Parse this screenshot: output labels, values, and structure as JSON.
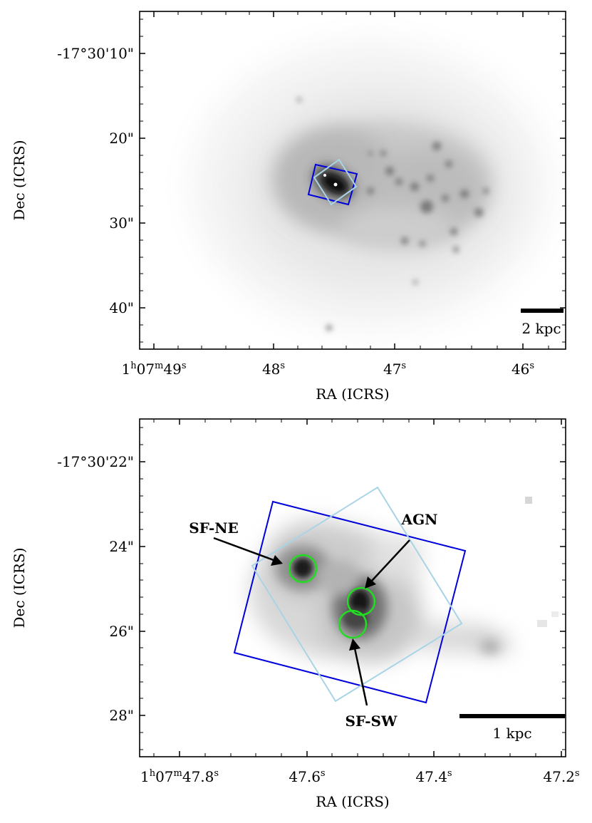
{
  "top_panel": {
    "xlabel": "RA (ICRS)",
    "ylabel": "Dec (ICRS)",
    "x_ticks": [
      {
        "main": "1",
        "h": "h",
        "m_val": "07",
        "m": "m",
        "s_val": "49",
        "s": "s"
      },
      {
        "main": "48",
        "s": "s"
      },
      {
        "main": "47",
        "s": "s"
      },
      {
        "main": "46",
        "s": "s"
      }
    ],
    "y_ticks": [
      "-17°30'10\"",
      "20\"",
      "30\"",
      "40\""
    ],
    "scale_bar_label": "2 kpc",
    "colors": {
      "blue_box": "#0000dd",
      "lightblue_box": "#a8d4e6"
    }
  },
  "bottom_panel": {
    "xlabel": "RA (ICRS)",
    "ylabel": "Dec (ICRS)",
    "x_ticks": [
      {
        "main": "1",
        "h": "h",
        "m_val": "07",
        "m": "m",
        "s_val": "47.8",
        "s": "s"
      },
      {
        "main": "47.6",
        "s": "s"
      },
      {
        "main": "47.4",
        "s": "s"
      },
      {
        "main": "47.2",
        "s": "s"
      }
    ],
    "y_ticks": [
      "-17°30'22\"",
      "24\"",
      "26\"",
      "28\""
    ],
    "scale_bar_label": "1 kpc",
    "annotations": {
      "sf_ne": "SF-NE",
      "agn": "AGN",
      "sf_sw": "SF-SW"
    },
    "colors": {
      "blue_box": "#0000dd",
      "lightblue_box": "#a8d4e6",
      "aperture": "#22dd22"
    }
  }
}
